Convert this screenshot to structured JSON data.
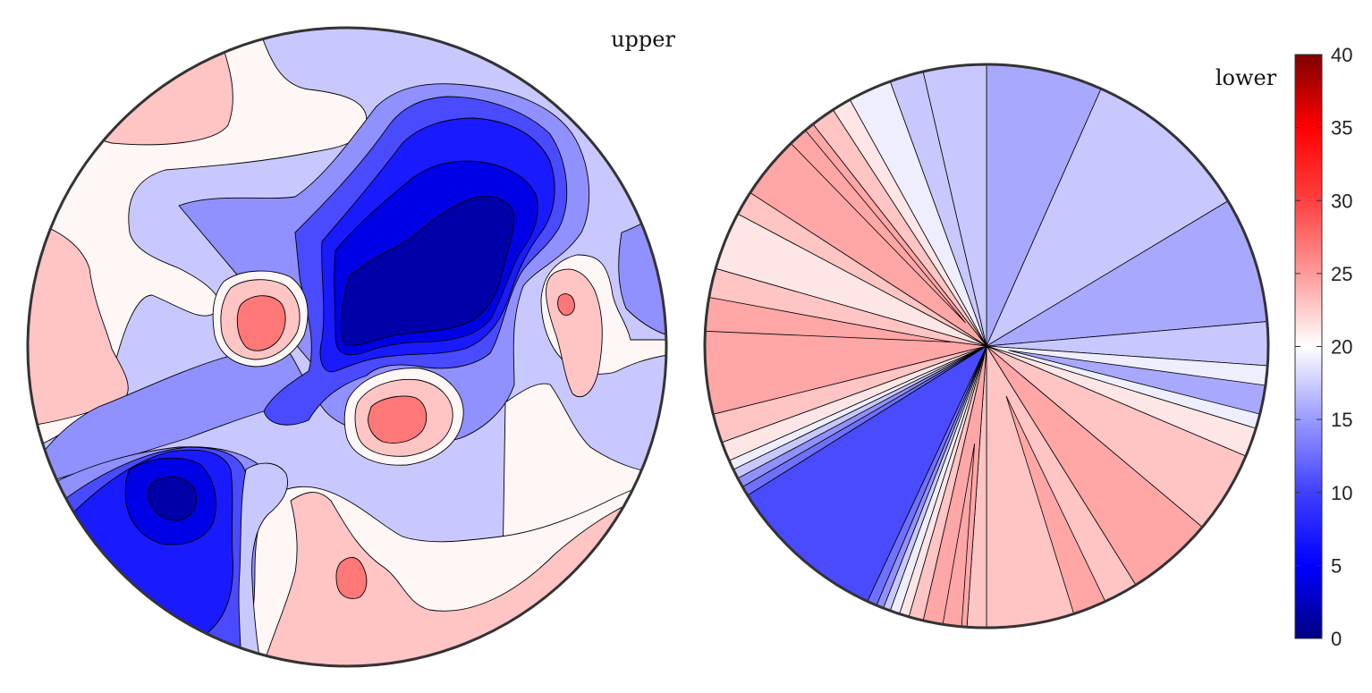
{
  "chart_data": {
    "type": "heatmap",
    "subtype": "pole-figure-contour",
    "title": "",
    "colormap": "blue-white-red",
    "colorbar": {
      "ticks": [
        0,
        5,
        10,
        15,
        20,
        25,
        30,
        35,
        40
      ],
      "range": [
        0,
        40
      ],
      "colors": {
        "low": "#000080",
        "mid": "#ffffff",
        "high": "#800000"
      }
    },
    "panels": [
      {
        "label": "upper",
        "levels_description": "contour regions with values between 0 and 30",
        "min_level": 0,
        "max_level": 30
      },
      {
        "label": "lower",
        "levels_description": "radial wedge sectors from center",
        "min_level": 10,
        "max_level": 27.5
      }
    ],
    "level_colors": [
      {
        "level": 2.5,
        "color": "#0000a8"
      },
      {
        "level": 5,
        "color": "#0000e6"
      },
      {
        "level": 7.5,
        "color": "#1a1aff"
      },
      {
        "level": 10,
        "color": "#4a4aff"
      },
      {
        "level": 12.5,
        "color": "#5a5aff"
      },
      {
        "level": 15,
        "color": "#9090ff"
      },
      {
        "level": 17.5,
        "color": "#c8c8ff"
      },
      {
        "level": 20,
        "color": "#eeeeff"
      },
      {
        "level": 22.5,
        "color": "#fff6f6"
      },
      {
        "level": 25,
        "color": "#ffc4c4"
      },
      {
        "level": 27.5,
        "color": "#ffa6a6"
      },
      {
        "level": 30,
        "color": "#ff7878"
      }
    ]
  }
}
